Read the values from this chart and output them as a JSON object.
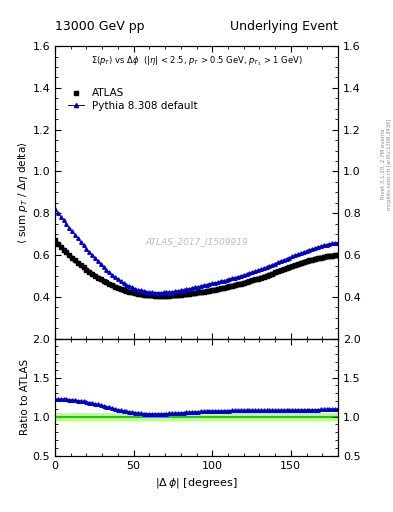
{
  "title_left": "13000 GeV pp",
  "title_right": "Underlying Event",
  "right_label": "Rivet 3.1.10, 2.7M events",
  "right_label2": "mcplots.cern.ch [arXiv:1306.3436]",
  "watermark": "ATLAS_2017_I1509919",
  "ylabel": "⟨ sum p_T / Δη delta⟩",
  "ylabel_ratio": "Ratio to ATLAS",
  "xlim": [
    0,
    180
  ],
  "ylim_main": [
    0.2,
    1.6
  ],
  "ylim_ratio": [
    0.5,
    2.0
  ],
  "yticks_main": [
    0.4,
    0.6,
    0.8,
    1.0,
    1.2,
    1.4,
    1.6
  ],
  "yticks_ratio": [
    0.5,
    1.0,
    1.5,
    2.0
  ],
  "xticks": [
    0,
    50,
    100,
    150
  ],
  "atlas_color": "#000000",
  "pythia_color": "#0000cc",
  "ratio_ref_color": "#00bb00",
  "ratio_band_color": "#bbff88",
  "legend_labels": [
    "ATLAS",
    "Pythia 8.308 default"
  ],
  "marker_atlas": "s",
  "marker_pythia": "^"
}
